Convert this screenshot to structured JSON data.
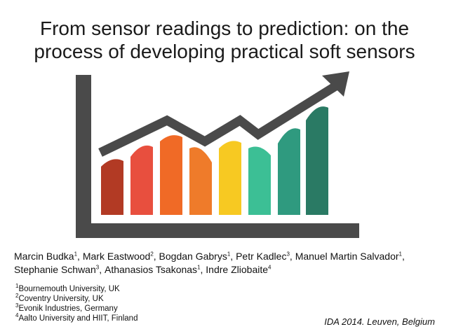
{
  "title": {
    "line1": "From sensor readings to prediction: on the",
    "line2": "process of developing practical soft sensors"
  },
  "illustration": {
    "bar_colors": [
      "#b23a24",
      "#e84f3e",
      "#f06a26",
      "#ef7b2a",
      "#f7c922",
      "#3cbf95",
      "#2f9a7f",
      "#2a7a64"
    ],
    "axis_color": "#4a4a4a",
    "trend_color": "#4a4a4a"
  },
  "authors": [
    {
      "name": "Marcin Budka",
      "sup": "1",
      "sep": ", "
    },
    {
      "name": "Mark Eastwood",
      "sup": "2",
      "sep": ", "
    },
    {
      "name": "Bogdan Gabrys",
      "sup": "1",
      "sep": ", "
    },
    {
      "name": "Petr Kadlec",
      "sup": "3",
      "sep": ", "
    },
    {
      "name": "Manuel Martin Salvador",
      "sup": "1",
      "sep": ", "
    },
    {
      "name": "Stephanie Schwan",
      "sup": "3",
      "sep": ", "
    },
    {
      "name": "Athanasios Tsakonas",
      "sup": "1",
      "sep": ", "
    },
    {
      "name": "Indre Zliobaite",
      "sup": "4",
      "sep": ""
    }
  ],
  "affiliations": [
    {
      "sup": "1",
      "text": "Bournemouth University, UK"
    },
    {
      "sup": "2",
      "text": "Coventry University, UK"
    },
    {
      "sup": "3",
      "text": "Evonik Industries, Germany"
    },
    {
      "sup": "4",
      "text": "Aalto University and HIIT, Finland"
    }
  ],
  "venue": "IDA 2014. Leuven, Belgium"
}
